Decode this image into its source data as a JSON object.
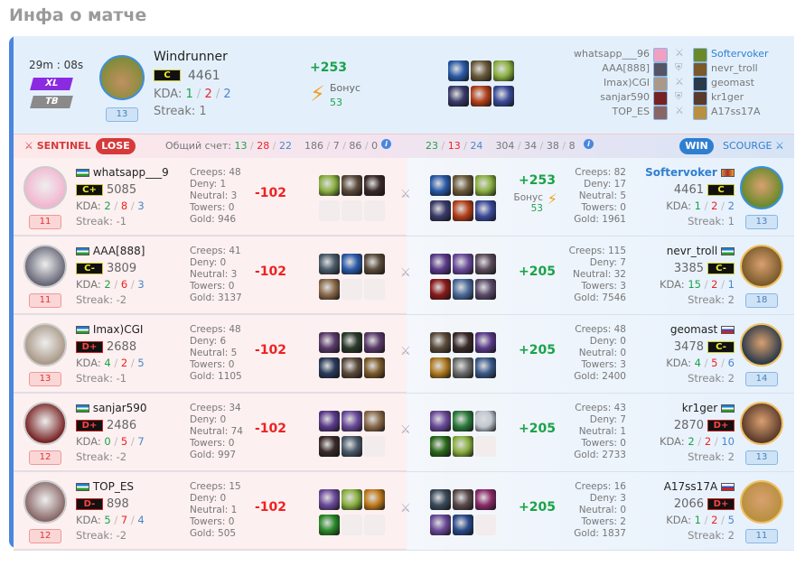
{
  "page_title": "Инфа о матче",
  "match": {
    "duration": "29m : 08s",
    "tags": [
      {
        "label": "XL",
        "color": "#8a2be2"
      },
      {
        "label": "TB",
        "color": "#8a8a8a"
      }
    ]
  },
  "mvp": {
    "hero": "Windrunner",
    "rank": "C",
    "rating": "4461",
    "kda_label": "KDA:",
    "kills": "1",
    "deaths": "2",
    "assists": "2",
    "streak": "Streak: 1",
    "level": "13",
    "delta": "+253",
    "bonus_label": "Бонус",
    "bonus": "53",
    "avatar_color": "#6a8a2a",
    "items": [
      "#2a5aa8",
      "#6b5a3a",
      "#8ab040",
      "#3a3a6a",
      "#b5401a",
      "#3a4a9a"
    ]
  },
  "roster": {
    "sentinel": [
      "whatsapp___96",
      "AAA[888]",
      "Imax)CGI",
      "sanjar590",
      "TOP_ES"
    ],
    "scourge": [
      "Softervoker",
      "nevr_troll",
      "geomast",
      "kr1ger",
      "A17ss17A"
    ],
    "sentinel_colors": [
      "#f0a0c0",
      "#556",
      "#a98",
      "#722",
      "#866"
    ],
    "scourge_colors": [
      "#6a8a2a",
      "#7a5a2a",
      "#2a3a4a",
      "#5a3a2a",
      "#b89040"
    ],
    "icons": [
      "swords-icon",
      "shield-icon",
      "swords-icon",
      "shield-icon",
      "swords-icon"
    ]
  },
  "teams": {
    "sentinel": {
      "name": "SENTINEL",
      "result": "LOSE",
      "score_label": "Общий счет:",
      "kills": "13",
      "deaths": "28",
      "assists": "22",
      "totals": [
        "186",
        "7",
        "86",
        "0"
      ],
      "color": "#d63a3a"
    },
    "scourge": {
      "name": "SCOURGE",
      "result": "WIN",
      "kills": "23",
      "deaths": "13",
      "assists": "24",
      "totals": [
        "304",
        "34",
        "38",
        "8"
      ],
      "color": "#2f7fd0"
    }
  },
  "rows": [
    {
      "left": {
        "name": "whatsapp___9",
        "flag": "uz",
        "rank": "C+",
        "rating": "5085",
        "kda_label": "KDA:",
        "k": "2",
        "d": "8",
        "a": "3",
        "streak": "Streak: -1",
        "level": "11",
        "creeps": "Creeps: 48",
        "deny": "Deny: 1",
        "neutral": "Neutral: 3",
        "towers": "Towers: 0",
        "gold": "Gold: 946",
        "delta": "-102",
        "avatar": "#f3b6d0",
        "items": [
          "#8ab040",
          "#5a4a3a",
          "#3a2a2a",
          null,
          null,
          null
        ]
      },
      "right": {
        "name": "Softervoker",
        "flag": "clan",
        "rank": "C",
        "rating": "4461",
        "kda_label": "KDA:",
        "k": "1",
        "d": "2",
        "a": "2",
        "streak": "Streak: 1",
        "level": "13",
        "creeps": "Creeps: 82",
        "deny": "Deny: 17",
        "neutral": "Neutral: 5",
        "towers": "Towers: 0",
        "gold": "Gold: 1961",
        "delta": "+253",
        "bonus_label": "Бонус",
        "bonus": "53",
        "avatar": "#6a8a2a",
        "items": [
          "#2a5aa8",
          "#6b5a3a",
          "#8ab040",
          "#3a3a6a",
          "#b5401a",
          "#3a4a9a"
        ]
      }
    },
    {
      "left": {
        "name": "AAA[888]",
        "flag": "uz",
        "rank": "C-",
        "rating": "3809",
        "kda_label": "KDA:",
        "k": "2",
        "d": "6",
        "a": "3",
        "streak": "Streak: -2",
        "level": "11",
        "creeps": "Creeps: 41",
        "deny": "Deny: 0",
        "neutral": "Neutral: 3",
        "towers": "Towers: 0",
        "gold": "Gold: 3137",
        "delta": "-102",
        "avatar": "#667",
        "items": [
          "#4a5a6a",
          "#2a5aa8",
          "#5a4a3a",
          "#8a6a4a",
          null,
          null
        ]
      },
      "right": {
        "name": "nevr_troll",
        "flag": "uz",
        "rank": "C-",
        "rating": "3385",
        "kda_label": "KDA:",
        "k": "15",
        "d": "2",
        "a": "1",
        "streak": "Streak: 2",
        "level": "18",
        "creeps": "Creeps: 115",
        "deny": "Deny: 7",
        "neutral": "Neutral: 32",
        "towers": "Towers: 3",
        "gold": "Gold: 7546",
        "delta": "+205",
        "avatar": "#7a5a2a",
        "items": [
          "#5a3a8a",
          "#6a4a9a",
          "#5a4a5a",
          "#8a1a1a",
          "#4a6a9a",
          "#5a4a6a"
        ]
      }
    },
    {
      "left": {
        "name": "Imax)CGI",
        "flag": "uz",
        "rank": "D+",
        "rating": "2688",
        "kda_label": "KDA:",
        "k": "4",
        "d": "2",
        "a": "5",
        "streak": "Streak: -1",
        "level": "13",
        "creeps": "Creeps: 48",
        "deny": "Deny: 6",
        "neutral": "Neutral: 5",
        "towers": "Towers: 0",
        "gold": "Gold: 1105",
        "delta": "-102",
        "avatar": "#a98",
        "items": [
          "#5a3a6a",
          "#2a3a2a",
          "#5a3a6a",
          "#2a3a5a",
          "#5a4a3a",
          "#7a5a2a"
        ]
      },
      "right": {
        "name": "geomast",
        "flag": "ru",
        "rank": "C-",
        "rating": "3478",
        "kda_label": "KDA:",
        "k": "4",
        "d": "5",
        "a": "6",
        "streak": "Streak: 2",
        "level": "14",
        "creeps": "Creeps: 48",
        "deny": "Deny: 0",
        "neutral": "Neutral: 0",
        "towers": "Towers: 3",
        "gold": "Gold: 2400",
        "delta": "+205",
        "avatar": "#2a3a4a",
        "items": [
          "#5a4a3a",
          "#3a2a2a",
          "#5a3a8a",
          "#b07a20",
          "#6a6a6a",
          "#3a5a8a"
        ]
      }
    },
    {
      "left": {
        "name": "sanjar590",
        "flag": "uz",
        "rank": "D+",
        "rating": "2486",
        "kda_label": "KDA:",
        "k": "0",
        "d": "5",
        "a": "7",
        "streak": "Streak: -2",
        "level": "12",
        "creeps": "Creeps: 34",
        "deny": "Deny: 0",
        "neutral": "Neutral: 74",
        "towers": "Towers: 0",
        "gold": "Gold: 997",
        "delta": "-102",
        "avatar": "#722",
        "items": [
          "#5a3a8a",
          "#6a4a9a",
          "#8a6a4a",
          "#3a2a2a",
          "#4a5a6a",
          null
        ]
      },
      "right": {
        "name": "kr1ger",
        "flag": "uz",
        "rank": "D+",
        "rating": "2870",
        "kda_label": "KDA:",
        "k": "2",
        "d": "2",
        "a": "10",
        "streak": "Streak: 2",
        "level": "13",
        "creeps": "Creeps: 43",
        "deny": "Deny: 7",
        "neutral": "Neutral: 1",
        "towers": "Towers: 0",
        "gold": "Gold: 2733",
        "delta": "+205",
        "avatar": "#5a3a2a",
        "items": [
          "#6a4a9a",
          "#2a7a3a",
          "#c0c8d0",
          "#2a6a1a",
          "#8ab040",
          null
        ]
      }
    },
    {
      "left": {
        "name": "TOP_ES",
        "flag": "uz",
        "rank": "D-",
        "rating": "898",
        "kda_label": "KDA:",
        "k": "5",
        "d": "7",
        "a": "4",
        "streak": "Streak: -2",
        "level": "12",
        "creeps": "Creeps: 15",
        "deny": "Deny: 0",
        "neutral": "Neutral: 1",
        "towers": "Towers: 0",
        "gold": "Gold: 505",
        "delta": "-102",
        "avatar": "#866",
        "items": [
          "#6a4a9a",
          "#8ab040",
          "#c07a1a",
          "#2a8a2a",
          null,
          null
        ]
      },
      "right": {
        "name": "A17ss17A",
        "flag": "ru",
        "rank": "D+",
        "rating": "2066",
        "kda_label": "KDA:",
        "k": "1",
        "d": "2",
        "a": "5",
        "streak": "Streak: 2",
        "level": "11",
        "creeps": "Creeps: 16",
        "deny": "Deny: 3",
        "neutral": "Neutral: 0",
        "towers": "Towers: 2",
        "gold": "Gold: 1837",
        "delta": "+205",
        "avatar": "#b89040",
        "items": [
          "#3a4a5a",
          "#5a4a4a",
          "#8a2a6a",
          "#6a4a9a",
          "#2a4a8a",
          null
        ]
      }
    }
  ]
}
